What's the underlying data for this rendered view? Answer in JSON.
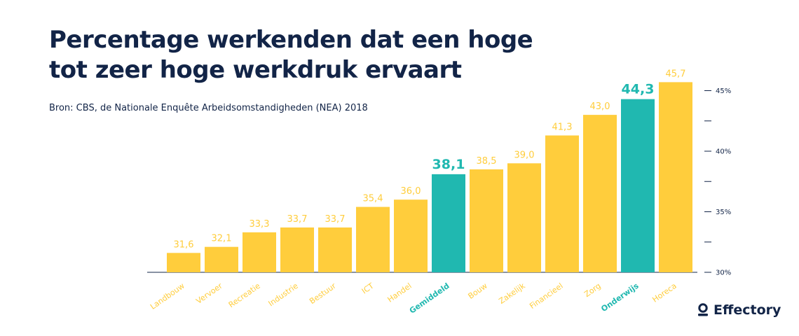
{
  "title_line1": "Percentage werkenden dat een hoge",
  "title_line2": "tot zeer hoge werkdruk ervaart",
  "source": "Bron: CBS, de Nationale Enquête Arbeidsomstandigheden (NEA) 2018",
  "logo_text": "Effectory",
  "colors": {
    "bar": "#FFCD3C",
    "highlight": "#20B8B0",
    "text": "#122447",
    "axis": "#122447"
  },
  "chart_data": {
    "type": "bar",
    "title": "Percentage werkenden dat een hoge tot zeer hoge werkdruk ervaart",
    "categories": [
      "Landbouw",
      "Vervoer",
      "Recreatie",
      "Industrie",
      "Bestuur",
      "ICT",
      "Handel",
      "Gemiddeld",
      "Bouw",
      "Zakelijk",
      "Financieel",
      "Zorg",
      "Onderwijs",
      "Horeca"
    ],
    "values": [
      31.6,
      32.1,
      33.3,
      33.7,
      33.7,
      35.4,
      36.0,
      38.1,
      38.5,
      39.0,
      41.3,
      43.0,
      44.3,
      45.7
    ],
    "value_labels": [
      "31,6",
      "32,1",
      "33,3",
      "33,7",
      "33,7",
      "35,4",
      "36,0",
      "38,1",
      "38,5",
      "39,0",
      "41,3",
      "43,0",
      "44,3",
      "45,7"
    ],
    "highlighted": [
      "Gemiddeld",
      "Onderwijs"
    ],
    "ylim": [
      30,
      46
    ],
    "y_ticks": [
      30,
      35,
      40,
      45
    ],
    "y_tick_labels": [
      "30%",
      "35%",
      "40%",
      "45%"
    ],
    "y_minor_ticks": [
      32.5,
      37.5,
      42.5
    ],
    "y_axis_position": "right",
    "grid": false,
    "xlabel": "",
    "ylabel": ""
  }
}
